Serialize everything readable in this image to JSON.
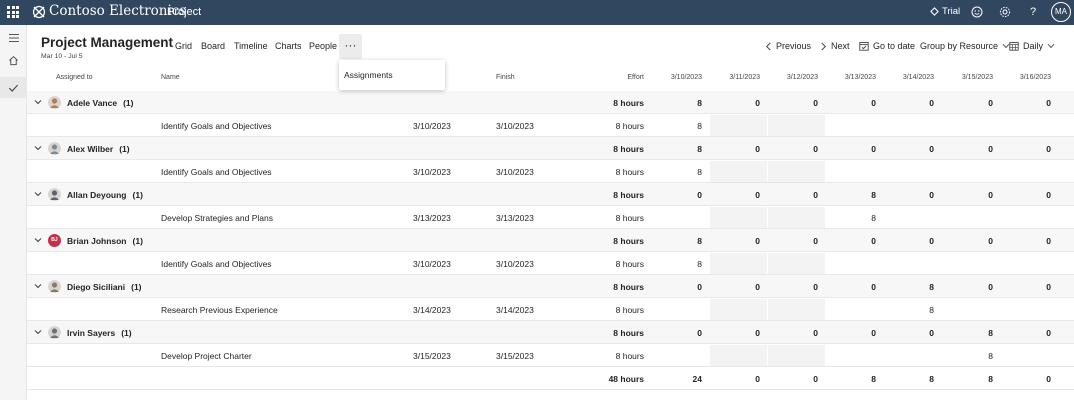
{
  "app": {
    "brand": "Contoso Electronics",
    "app_name": "Project",
    "trial_label": "Trial",
    "user_initials": "MA"
  },
  "header": {
    "title": "Project Management",
    "date_range": "Mar 10 - Jul 5"
  },
  "tabs": [
    "Grid",
    "Board",
    "Timeline",
    "Charts",
    "People"
  ],
  "more_menu": {
    "items": [
      "Assignments"
    ]
  },
  "commands": {
    "previous": "Previous",
    "next": "Next",
    "go_to_date": "Go to date",
    "group_by": "Group by Resource",
    "scale": "Daily"
  },
  "columns": {
    "assigned_to": "Assigned to",
    "name": "Name",
    "finish": "Finish",
    "effort": "Effort",
    "dates": [
      "3/10/2023",
      "3/11/2023",
      "3/12/2023",
      "3/13/2023",
      "3/14/2023",
      "3/15/2023",
      "3/16/2023"
    ]
  },
  "groups": [
    {
      "name": "Adele Vance",
      "count": "(1)",
      "effort": "8 hours",
      "days": [
        "8",
        "0",
        "0",
        "0",
        "0",
        "0",
        "0"
      ],
      "task": {
        "name": "Identify Goals and Objectives",
        "start": "3/10/2023",
        "finish": "3/10/2023",
        "effort": "8 hours",
        "days": [
          "8",
          "",
          "",
          "",
          "",
          "",
          ""
        ]
      }
    },
    {
      "name": "Alex Wilber",
      "count": "(1)",
      "effort": "8 hours",
      "days": [
        "8",
        "0",
        "0",
        "0",
        "0",
        "0",
        "0"
      ],
      "task": {
        "name": "Identify Goals and Objectives",
        "start": "3/10/2023",
        "finish": "3/10/2023",
        "effort": "8 hours",
        "days": [
          "8",
          "",
          "",
          "",
          "",
          "",
          ""
        ]
      }
    },
    {
      "name": "Allan Deyoung",
      "count": "(1)",
      "effort": "8 hours",
      "days": [
        "0",
        "0",
        "0",
        "8",
        "0",
        "0",
        "0"
      ],
      "task": {
        "name": "Develop Strategies and Plans",
        "start": "3/13/2023",
        "finish": "3/13/2023",
        "effort": "8 hours",
        "days": [
          "",
          "",
          "",
          "8",
          "",
          "",
          ""
        ]
      }
    },
    {
      "name": "Brian Johnson",
      "count": "(1)",
      "effort": "8 hours",
      "days": [
        "8",
        "0",
        "0",
        "0",
        "0",
        "0",
        "0"
      ],
      "task": {
        "name": "Identify Goals and Objectives",
        "start": "3/10/2023",
        "finish": "3/10/2023",
        "effort": "8 hours",
        "days": [
          "8",
          "",
          "",
          "",
          "",
          "",
          ""
        ]
      },
      "avatar_initials": "BJ"
    },
    {
      "name": "Diego Siciliani",
      "count": "(1)",
      "effort": "8 hours",
      "days": [
        "0",
        "0",
        "0",
        "0",
        "8",
        "0",
        "0"
      ],
      "task": {
        "name": "Research Previous Experience",
        "start": "3/14/2023",
        "finish": "3/14/2023",
        "effort": "8 hours",
        "days": [
          "",
          "",
          "",
          "",
          "8",
          "",
          ""
        ]
      }
    },
    {
      "name": "Irvin Sayers",
      "count": "(1)",
      "effort": "8 hours",
      "days": [
        "0",
        "0",
        "0",
        "0",
        "0",
        "8",
        "0"
      ],
      "task": {
        "name": "Develop Project Charter",
        "start": "3/15/2023",
        "finish": "3/15/2023",
        "effort": "8 hours",
        "days": [
          "",
          "",
          "",
          "",
          "",
          "8",
          ""
        ]
      }
    }
  ],
  "totals": {
    "effort": "48 hours",
    "days": [
      "24",
      "0",
      "0",
      "8",
      "8",
      "8",
      "0"
    ]
  },
  "colors": {
    "topbar": "#31475f",
    "avatars": [
      "#b5785a",
      "#7d8a96",
      "#5a6470",
      "#c4314b",
      "#8a7a6a",
      "#6a747e"
    ]
  }
}
